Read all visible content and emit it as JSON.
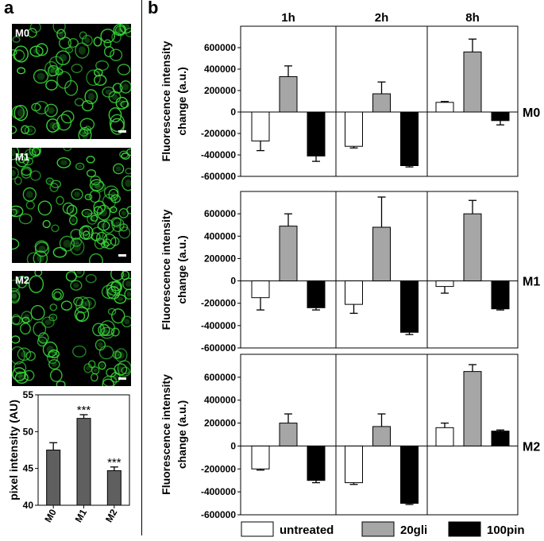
{
  "panel_a": {
    "letter": "a",
    "images": [
      {
        "label": "M0"
      },
      {
        "label": "M1"
      },
      {
        "label": "M2"
      }
    ]
  },
  "panel_b": {
    "letter": "b",
    "row_labels": [
      "M0",
      "M1",
      "M2"
    ]
  },
  "colors": {
    "untreated": "#ffffff",
    "20gli": "#a6a6a6",
    "100pin": "#000000",
    "bar_a": "#5f5f5f",
    "cells": "#39d83a"
  },
  "chart_data": [
    {
      "type": "bar",
      "panel": "a",
      "categories": [
        "M0",
        "M1",
        "M2"
      ],
      "values": [
        47.5,
        51.8,
        44.7
      ],
      "errors": [
        1.0,
        0.5,
        0.5
      ],
      "annotations": [
        "",
        "***",
        "***"
      ],
      "ylabel": "pixel intensity (AU)",
      "ylim": [
        40,
        55
      ],
      "yticks": [
        40,
        45,
        50,
        55
      ]
    },
    {
      "type": "bar",
      "panel": "b",
      "ylabel": "Fluorescence intensity change (a.u.)",
      "ylim": [
        -600000,
        800000
      ],
      "yticks": [
        600000,
        400000,
        200000,
        0,
        -200000,
        -400000,
        -600000
      ],
      "time_points": [
        "1h",
        "2h",
        "8h"
      ],
      "legend": [
        "untreated",
        "20gli",
        "100pin"
      ],
      "legend_position": "bottom",
      "rows": [
        {
          "label": "M0",
          "untreated": {
            "values": [
              -270000,
              -320000,
              90000
            ],
            "errors": [
              90000,
              15000,
              8000
            ]
          },
          "20gli": {
            "values": [
              330000,
              170000,
              560000
            ],
            "errors": [
              100000,
              110000,
              120000
            ]
          },
          "100pin": {
            "values": [
              -410000,
              -500000,
              -80000
            ],
            "errors": [
              50000,
              12000,
              40000
            ]
          }
        },
        {
          "label": "M1",
          "untreated": {
            "values": [
              -150000,
              -210000,
              -50000
            ],
            "errors": [
              110000,
              80000,
              60000
            ]
          },
          "20gli": {
            "values": [
              490000,
              480000,
              600000
            ],
            "errors": [
              110000,
              270000,
              120000
            ]
          },
          "100pin": {
            "values": [
              -240000,
              -460000,
              -250000
            ],
            "errors": [
              20000,
              20000,
              10000
            ]
          }
        },
        {
          "label": "M2",
          "untreated": {
            "values": [
              -200000,
              -320000,
              160000
            ],
            "errors": [
              10000,
              15000,
              40000
            ]
          },
          "20gli": {
            "values": [
              200000,
              170000,
              650000
            ],
            "errors": [
              80000,
              110000,
              60000
            ]
          },
          "100pin": {
            "values": [
              -300000,
              -500000,
              130000
            ],
            "errors": [
              20000,
              10000,
              10000
            ]
          }
        }
      ]
    }
  ]
}
